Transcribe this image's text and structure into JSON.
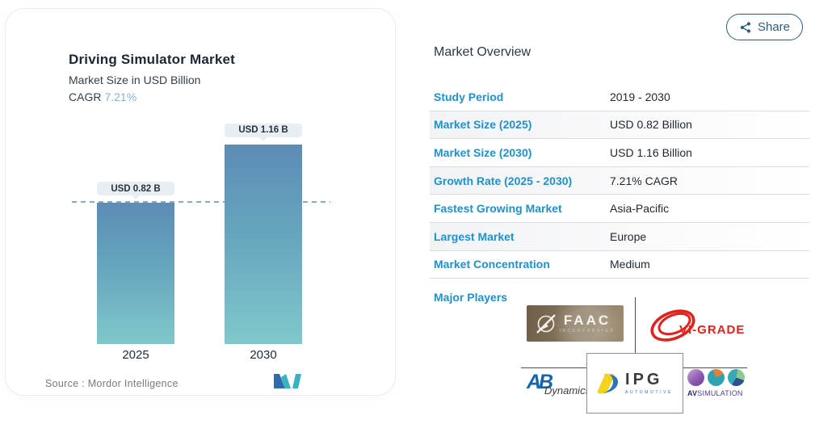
{
  "chart_card": {
    "title": "Driving Simulator Market",
    "subtitle": "Market Size in USD Billion",
    "cagr_label": "CAGR",
    "cagr_value": "7.21%",
    "source": "Source :  Mordor Intelligence"
  },
  "chart_data": {
    "type": "bar",
    "title": "Driving Simulator Market",
    "subtitle": "Market Size in USD Billion",
    "cagr": "7.21%",
    "categories": [
      "2025",
      "2030"
    ],
    "values": [
      0.82,
      1.16
    ],
    "unit": "USD Billion",
    "bar_labels": [
      "USD 0.82 B",
      "USD 1.16 B"
    ],
    "reference_line": 0.82,
    "ylim": [
      0,
      1.3
    ],
    "grid": false,
    "legend": "none",
    "bar_gradient": [
      "#5d8cb5",
      "#80c8cb"
    ],
    "reference_line_color": "#84abce"
  },
  "share": {
    "label": "Share"
  },
  "overview": {
    "heading": "Market Overview",
    "rows": [
      {
        "label": "Study Period",
        "value": "2019 - 2030"
      },
      {
        "label": "Market Size (2025)",
        "value": "USD 0.82 Billion"
      },
      {
        "label": "Market Size (2030)",
        "value": "USD 1.16 Billion"
      },
      {
        "label": "Growth Rate (2025 - 2030)",
        "value": "7.21% CAGR"
      },
      {
        "label": "Fastest Growing Market",
        "value": "Asia-Pacific"
      },
      {
        "label": "Largest Market",
        "value": "Europe"
      },
      {
        "label": "Market Concentration",
        "value": "Medium"
      }
    ],
    "major_players_label": "Major Players"
  },
  "players": {
    "faac": {
      "name": "FAAC",
      "sub": "INCORPORATED"
    },
    "vigrade": {
      "name": "VI-GRADE"
    },
    "abdynamics": {
      "name_a": "AB",
      "name_b": "Dynamics"
    },
    "ipg": {
      "name": "IPG",
      "sub": "AUTOMOTIVE"
    },
    "avsimulation": {
      "name_a": "AV",
      "name_b": "SIMULATION"
    }
  },
  "colors": {
    "accent_blue": "#2190cb",
    "share_teal": "#2a5f7a",
    "cagr_blue": "#86b2da",
    "text_dark": "#1f2a33",
    "divider": "#dadddf",
    "chip_bg": "#e9eef2"
  }
}
